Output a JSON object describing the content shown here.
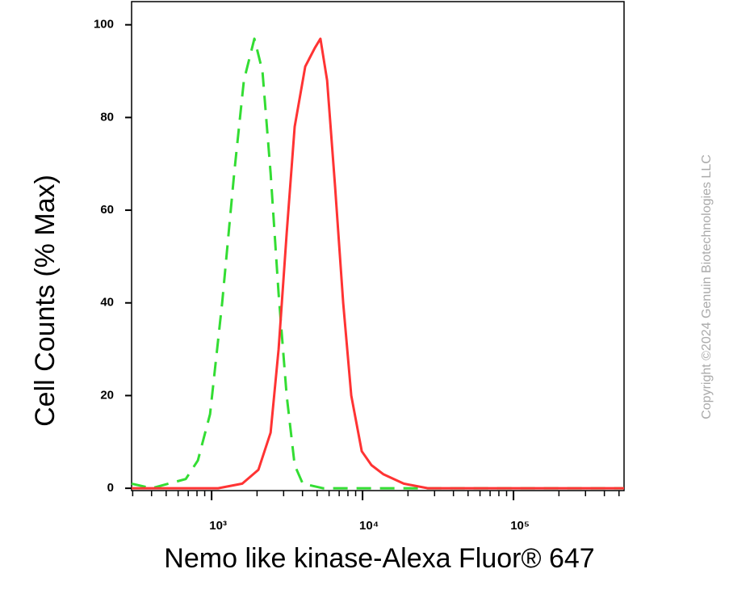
{
  "chart_data": {
    "type": "line",
    "y_label": "Cell Counts (% Max)",
    "x_label": "Nemo like kinase-Alexa Fluor® 647",
    "watermark": "Copyright ©2024 Genuin Biotechnologies LLC",
    "x_scale": "log",
    "xlim": [
      295,
      540000
    ],
    "ylim": [
      -0.5,
      105
    ],
    "xticks": [
      {
        "value": 1000,
        "label": "10³"
      },
      {
        "value": 10000,
        "label": "10⁴"
      },
      {
        "value": 100000,
        "label": "10⁵"
      }
    ],
    "xminorticks": [
      300,
      400,
      500,
      600,
      700,
      800,
      900,
      2000,
      3000,
      4000,
      5000,
      6000,
      7000,
      8000,
      9000,
      20000,
      30000,
      40000,
      50000,
      60000,
      70000,
      80000,
      90000,
      200000,
      300000,
      400000,
      500000
    ],
    "yticks": [
      0,
      20,
      40,
      60,
      80,
      100
    ],
    "series": [
      {
        "color": "#33dd33",
        "dashed": true,
        "x": [
          295,
          400,
          674,
          811,
          976,
          1174,
          1411,
          1637,
          1920,
          2173,
          2459,
          2779,
          3142,
          3552,
          4016,
          5466,
          20000,
          540000
        ],
        "values": [
          1,
          0,
          2,
          6,
          16,
          40,
          68,
          88,
          97,
          90,
          68,
          42,
          20,
          5,
          1,
          0,
          0,
          0
        ]
      },
      {
        "color": "#ff3333",
        "dashed": false,
        "x": [
          295,
          1104,
          1597,
          2041,
          2459,
          2779,
          3142,
          3552,
          4169,
          4831,
          5260,
          5821,
          6577,
          7443,
          8414,
          9882,
          11450,
          13770,
          18740,
          27100,
          540000
        ],
        "values": [
          0,
          0,
          1,
          4,
          12,
          30,
          55,
          78,
          91,
          95,
          97,
          88,
          65,
          40,
          20,
          8,
          5,
          3,
          1,
          0,
          0
        ]
      }
    ]
  }
}
